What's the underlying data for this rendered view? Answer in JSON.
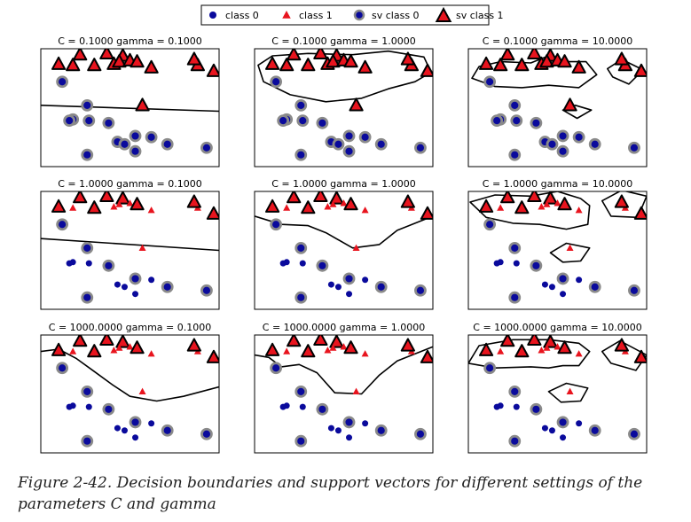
{
  "legend": {
    "placement": "top-center",
    "entries": [
      {
        "label": "class 0",
        "marker": "circle"
      },
      {
        "label": "class 1",
        "marker": "triangle"
      },
      {
        "label": "sv class 0",
        "marker": "circle-sv"
      },
      {
        "label": "sv class 1",
        "marker": "triangle-sv"
      }
    ]
  },
  "colors": {
    "class0": "#0a0a9c",
    "class1": "#e8141e",
    "sv_edge": "#8a8a8a",
    "boundary": "#000000"
  },
  "caption": "Figure 2-42. Decision boundaries and support vectors for different settings of the parameters C and gamma",
  "chart_data": {
    "type": "scatter",
    "grid": false,
    "xlim": [
      0,
      10
    ],
    "ylim": [
      0,
      10
    ],
    "layout": {
      "rows": 3,
      "cols": 3
    },
    "panels": [
      {
        "title": "C = 0.1000 gamma = 0.1000",
        "c": 0.1,
        "gamma": 0.1,
        "sv": "all",
        "boundary": "line",
        "line": [
          5.2,
          4.7
        ]
      },
      {
        "title": "C = 0.1000 gamma = 1.0000",
        "c": 0.1,
        "gamma": 1.0,
        "sv": "all",
        "boundary": "closed",
        "closed": [
          [
            [
              0.2,
              8.6
            ],
            [
              1,
              9.4
            ],
            [
              3,
              9.6
            ],
            [
              5.5,
              9.5
            ],
            [
              7.5,
              9.8
            ],
            [
              9.5,
              9.3
            ],
            [
              9.9,
              8
            ],
            [
              9,
              7.2
            ],
            [
              7.5,
              6.6
            ],
            [
              6,
              5.8
            ],
            [
              4,
              5.5
            ],
            [
              2,
              6.1
            ],
            [
              0.5,
              7.2
            ]
          ]
        ]
      },
      {
        "title": "C = 0.1000 gamma = 10.0000",
        "c": 0.1,
        "gamma": 10.0,
        "sv": "all",
        "boundary": "closed",
        "closed": [
          [
            [
              0.2,
              7.5
            ],
            [
              0.6,
              8.5
            ],
            [
              1.8,
              8.9
            ],
            [
              3.5,
              8.8
            ],
            [
              4.5,
              9.4
            ],
            [
              5.3,
              8.9
            ],
            [
              6.6,
              8.9
            ],
            [
              7.2,
              7.8
            ],
            [
              6.2,
              6.7
            ],
            [
              4.5,
              6.9
            ],
            [
              3,
              6.7
            ],
            [
              1.5,
              6.8
            ]
          ],
          [
            [
              7.8,
              8.3
            ],
            [
              8.6,
              9.1
            ],
            [
              9.8,
              8.2
            ],
            [
              9,
              7
            ],
            [
              8.1,
              7.6
            ]
          ],
          [
            [
              5.3,
              4.8
            ],
            [
              6,
              5.2
            ],
            [
              6.9,
              4.8
            ],
            [
              6.1,
              4.1
            ]
          ]
        ]
      },
      {
        "title": "C = 1.0000 gamma = 0.1000",
        "c": 1.0,
        "gamma": 0.1,
        "sv": "partial",
        "boundary": "line",
        "line": [
          6.0,
          5.0
        ]
      },
      {
        "title": "C = 1.0000 gamma = 1.0000",
        "c": 1.0,
        "gamma": 1.0,
        "sv": "partial",
        "boundary": "curve",
        "curve": [
          [
            0,
            7.9
          ],
          [
            1.5,
            7.2
          ],
          [
            3,
            7.1
          ],
          [
            4,
            6.5
          ],
          [
            5.5,
            5.2
          ],
          [
            7,
            5.5
          ],
          [
            8,
            6.7
          ],
          [
            9,
            7.3
          ],
          [
            10,
            7.9
          ]
        ]
      },
      {
        "title": "C = 1.0000 gamma = 10.0000",
        "c": 1.0,
        "gamma": 10.0,
        "sv": "partial",
        "boundary": "closed",
        "closed": [
          [
            [
              0.1,
              9.1
            ],
            [
              1.5,
              9.7
            ],
            [
              3.5,
              9.6
            ],
            [
              5,
              10
            ],
            [
              6.3,
              9.4
            ],
            [
              6.8,
              8.8
            ],
            [
              6.7,
              7.2
            ],
            [
              5.5,
              6.8
            ],
            [
              4,
              7.2
            ],
            [
              2.5,
              7.3
            ],
            [
              1,
              7.8
            ]
          ],
          [
            [
              7.5,
              9.2
            ],
            [
              8.6,
              10.1
            ],
            [
              10,
              9.6
            ],
            [
              9.5,
              7.8
            ],
            [
              8,
              7.9
            ]
          ],
          [
            [
              4.6,
              4.8
            ],
            [
              5.5,
              5.6
            ],
            [
              6.8,
              5.2
            ],
            [
              6.3,
              4.1
            ],
            [
              5.3,
              4
            ]
          ]
        ]
      },
      {
        "title": "C = 1000.0000 gamma = 0.1000",
        "c": 1000.0,
        "gamma": 0.1,
        "sv": "partial",
        "boundary": "curve",
        "curve": [
          [
            0,
            8.6
          ],
          [
            1,
            8.8
          ],
          [
            2,
            8
          ],
          [
            3,
            6.9
          ],
          [
            4,
            5.8
          ],
          [
            5,
            4.8
          ],
          [
            6.5,
            4.4
          ],
          [
            8,
            4.8
          ],
          [
            10,
            5.6
          ]
        ]
      },
      {
        "title": "C = 1000.0000 gamma = 1.0000",
        "c": 1000.0,
        "gamma": 1.0,
        "sv": "partial",
        "boundary": "curve",
        "curve": [
          [
            0,
            8.3
          ],
          [
            0.8,
            8.1
          ],
          [
            1.5,
            7.3
          ],
          [
            2.5,
            7.5
          ],
          [
            3.5,
            6.8
          ],
          [
            4.5,
            5.1
          ],
          [
            6,
            5
          ],
          [
            7,
            6.6
          ],
          [
            8,
            7.8
          ],
          [
            10,
            9
          ]
        ]
      },
      {
        "title": "C = 1000.0000 gamma = 10.0000",
        "c": 1000.0,
        "gamma": 10.0,
        "sv": "partial",
        "boundary": "closed",
        "closed": [
          [
            [
              0,
              7.6
            ],
            [
              0.6,
              9.1
            ],
            [
              2.5,
              9.6
            ],
            [
              4.5,
              9.6
            ],
            [
              6.2,
              9.3
            ],
            [
              6.8,
              8.6
            ],
            [
              6.2,
              7.4
            ],
            [
              5.3,
              7.4
            ],
            [
              4.5,
              7.2
            ],
            [
              3.5,
              7.3
            ],
            [
              1.5,
              7.2
            ]
          ],
          [
            [
              7.5,
              8.6
            ],
            [
              8.5,
              9.5
            ],
            [
              10,
              8.3
            ],
            [
              9.4,
              7
            ],
            [
              8,
              7.6
            ]
          ],
          [
            [
              4.5,
              5.2
            ],
            [
              5.5,
              5.9
            ],
            [
              6.7,
              5.5
            ],
            [
              6.3,
              4.4
            ],
            [
              5.2,
              4.3
            ]
          ]
        ]
      }
    ],
    "points": {
      "class1": [
        [
          1,
          8.7
        ],
        [
          1.8,
          8.6
        ],
        [
          2.2,
          9.5
        ],
        [
          3,
          8.6
        ],
        [
          3.7,
          9.6
        ],
        [
          4.1,
          8.7
        ],
        [
          4.6,
          9.4
        ],
        [
          4.4,
          8.9
        ],
        [
          5,
          9
        ],
        [
          5.4,
          8.9
        ],
        [
          6.2,
          8.4
        ],
        [
          8.8,
          8.6
        ],
        [
          9.7,
          8.1
        ],
        [
          5.7,
          5.2
        ],
        [
          8.6,
          9.1
        ]
      ],
      "class1_sv_partial": [
        0,
        2,
        3,
        4,
        6,
        9,
        12,
        14
      ],
      "class0": [
        [
          1.2,
          7.2
        ],
        [
          2.6,
          5.2
        ],
        [
          1.8,
          4
        ],
        [
          2.7,
          3.9
        ],
        [
          3.8,
          3.7
        ],
        [
          5.3,
          2.6
        ],
        [
          4.3,
          2.1
        ],
        [
          4.7,
          1.9
        ],
        [
          2.6,
          1
        ],
        [
          5.3,
          1.3
        ],
        [
          6.2,
          2.5
        ],
        [
          7.1,
          1.9
        ],
        [
          9.3,
          1.6
        ],
        [
          1.6,
          3.9
        ]
      ],
      "class0_sv_partial": [
        0,
        1,
        4,
        5,
        8,
        11,
        12
      ]
    }
  }
}
